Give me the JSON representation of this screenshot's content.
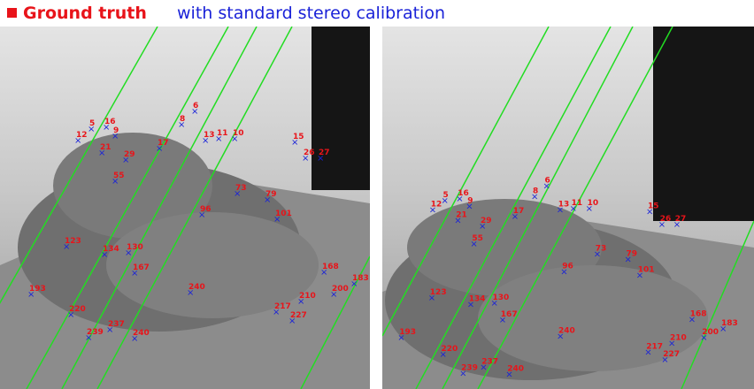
{
  "header": {
    "title": "Ground truth",
    "subtitle": "with standard stereo calibration"
  },
  "images": [
    {
      "labels": [
        "5",
        "16",
        "9",
        "12",
        "21",
        "17",
        "8",
        "6",
        "13",
        "11",
        "10",
        "15",
        "26",
        "27",
        "79",
        "101",
        "168",
        "183",
        "200",
        "240",
        "239",
        "237",
        "210",
        "227",
        "217",
        "134",
        "130",
        "167",
        "193",
        "220",
        "123",
        "96",
        "73",
        "55",
        "29",
        "240"
      ]
    },
    {
      "labels": [
        "5",
        "16",
        "9",
        "12",
        "21",
        "17",
        "8",
        "6",
        "13",
        "11",
        "10",
        "15",
        "26",
        "27",
        "79",
        "101",
        "168",
        "183",
        "200",
        "240",
        "239",
        "237",
        "210",
        "227",
        "217",
        "134",
        "130",
        "167",
        "193",
        "220",
        "123",
        "96",
        "73",
        "55",
        "29",
        "240"
      ]
    }
  ]
}
